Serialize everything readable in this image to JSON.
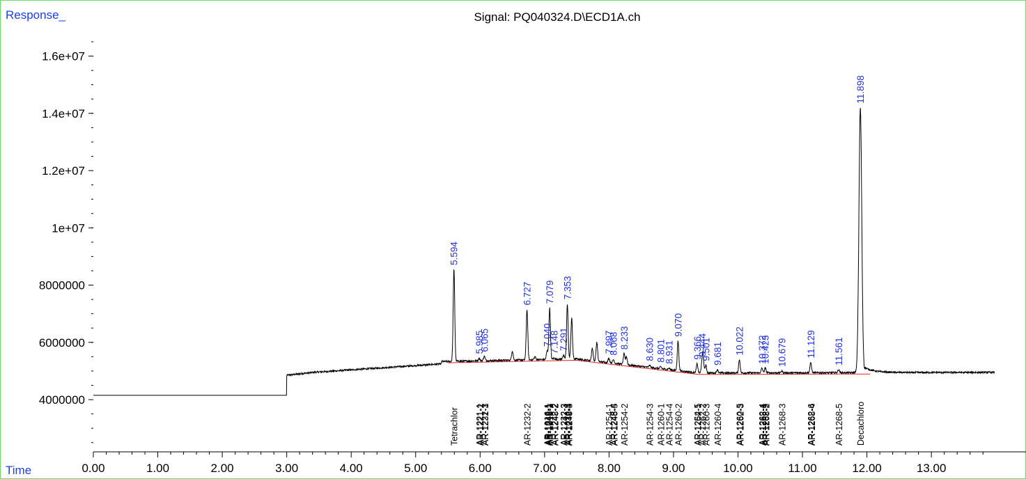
{
  "chart_data": {
    "type": "line",
    "title": "Signal: PQ040324.D\\ECD1A.ch",
    "ylabel": "Response_",
    "xlabel": "Time",
    "xlim": [
      0,
      13.98
    ],
    "ylim": [
      2000000,
      17700000
    ],
    "x_ticks": [
      "0.00",
      "1.00",
      "2.00",
      "3.00",
      "4.00",
      "5.00",
      "6.00",
      "7.00",
      "8.00",
      "9.00",
      "10.00",
      "11.00",
      "12.00",
      "13.00"
    ],
    "y_ticks": [
      "4000000",
      "6000000",
      "8000000",
      "1e+07",
      "1.2e+07",
      "1.4e+07",
      "1.6e+07"
    ],
    "colors": {
      "trace": "#000000",
      "baseline": "#dd2222",
      "peak_label": "#2233dd",
      "frame": "#66dd66",
      "axis_label": "#1a3ff0"
    },
    "peaks": [
      {
        "rt": 5.594,
        "label": "5.594",
        "height": 8550000
      },
      {
        "rt": 5.985,
        "label": "5.985",
        "height": 5450000
      },
      {
        "rt": 6.065,
        "label": "6.065",
        "height": 5520000
      },
      {
        "rt": 6.727,
        "label": "6.727",
        "height": 7150000
      },
      {
        "rt": 7.04,
        "label": "7.040",
        "height": 5700000
      },
      {
        "rt": 7.079,
        "label": "7.079",
        "height": 7200000
      },
      {
        "rt": 7.148,
        "label": "7.148",
        "height": 5450000
      },
      {
        "rt": 7.291,
        "label": "7.291",
        "height": 5550000
      },
      {
        "rt": 7.353,
        "label": "7.353",
        "height": 7350000
      },
      {
        "rt": 7.997,
        "label": "7.997",
        "height": 5450000
      },
      {
        "rt": 8.068,
        "label": "8.068",
        "height": 5400000
      },
      {
        "rt": 8.233,
        "label": "8.233",
        "height": 5600000
      },
      {
        "rt": 8.63,
        "label": "8.630",
        "height": 5200000
      },
      {
        "rt": 8.801,
        "label": "8.801",
        "height": 5150000
      },
      {
        "rt": 8.931,
        "label": "8.931",
        "height": 5100000
      },
      {
        "rt": 9.07,
        "label": "9.070",
        "height": 6050000
      },
      {
        "rt": 9.366,
        "label": "9.366",
        "height": 5250000
      },
      {
        "rt": 9.444,
        "label": "9.444",
        "height": 5350000
      },
      {
        "rt": 9.501,
        "label": "9.501",
        "height": 5200000
      },
      {
        "rt": 9.681,
        "label": "9.681",
        "height": 5050000
      },
      {
        "rt": 10.022,
        "label": "10.022",
        "height": 5400000
      },
      {
        "rt": 10.372,
        "label": "10.372",
        "height": 5100000
      },
      {
        "rt": 10.423,
        "label": "10.423",
        "height": 5100000
      },
      {
        "rt": 10.679,
        "label": "10.679",
        "height": 5000000
      },
      {
        "rt": 11.129,
        "label": "11.129",
        "height": 5300000
      },
      {
        "rt": 11.561,
        "label": "11.561",
        "height": 5050000
      },
      {
        "rt": 11.898,
        "label": "11.898",
        "height": 14200000
      }
    ],
    "minor_peaks": [
      {
        "rt": 6.5,
        "height": 5700000
      },
      {
        "rt": 6.85,
        "height": 5500000
      },
      {
        "rt": 7.42,
        "height": 6850000
      },
      {
        "rt": 7.74,
        "height": 5800000
      },
      {
        "rt": 7.81,
        "height": 6000000
      },
      {
        "rt": 8.27,
        "height": 5500000
      },
      {
        "rt": 9.46,
        "height": 5400000
      }
    ],
    "compounds": [
      {
        "rt": 5.594,
        "name": "Tetrachlor"
      },
      {
        "rt": 5.985,
        "name": "AR-1221-1"
      },
      {
        "rt": 6.0,
        "name": "AR-1221-2"
      },
      {
        "rt": 6.065,
        "name": "AR-1221-3"
      },
      {
        "rt": 6.075,
        "name": "AR-1232-1"
      },
      {
        "rt": 6.727,
        "name": "AR-1232-2"
      },
      {
        "rt": 7.04,
        "name": "AR-1016-1"
      },
      {
        "rt": 7.05,
        "name": "AR-1242-1"
      },
      {
        "rt": 7.06,
        "name": "AR-1248-1"
      },
      {
        "rt": 7.079,
        "name": "AR-1016-2"
      },
      {
        "rt": 7.148,
        "name": "AR-1242-2"
      },
      {
        "rt": 7.158,
        "name": "AR-1248-2"
      },
      {
        "rt": 7.291,
        "name": "AR-1232-3"
      },
      {
        "rt": 7.301,
        "name": "AR-1242-3"
      },
      {
        "rt": 7.353,
        "name": "AR-1016-3"
      },
      {
        "rt": 7.363,
        "name": "AR-1232-4"
      },
      {
        "rt": 7.373,
        "name": "AR-1248-3"
      },
      {
        "rt": 7.997,
        "name": "AR-1254-1"
      },
      {
        "rt": 8.068,
        "name": "AR-1248-4"
      },
      {
        "rt": 8.078,
        "name": "AR-1248-5"
      },
      {
        "rt": 8.233,
        "name": "AR-1254-2"
      },
      {
        "rt": 8.63,
        "name": "AR-1254-3"
      },
      {
        "rt": 8.801,
        "name": "AR-1260-1"
      },
      {
        "rt": 8.931,
        "name": "AR-1254-4"
      },
      {
        "rt": 9.07,
        "name": "AR-1260-2"
      },
      {
        "rt": 9.366,
        "name": "AR-1254-5"
      },
      {
        "rt": 9.376,
        "name": "AR-1262-1"
      },
      {
        "rt": 9.444,
        "name": "AR-1262-2"
      },
      {
        "rt": 9.501,
        "name": "AR-1260-3"
      },
      {
        "rt": 9.681,
        "name": "AR-1260-4"
      },
      {
        "rt": 10.022,
        "name": "AR-1260-5"
      },
      {
        "rt": 10.032,
        "name": "AR-1262-3"
      },
      {
        "rt": 10.372,
        "name": "AR-1262-4"
      },
      {
        "rt": 10.382,
        "name": "AR-1268-1"
      },
      {
        "rt": 10.423,
        "name": "AR-1262-5"
      },
      {
        "rt": 10.433,
        "name": "AR-1268-2"
      },
      {
        "rt": 10.679,
        "name": "AR-1268-3"
      },
      {
        "rt": 11.129,
        "name": "AR-1262-6"
      },
      {
        "rt": 11.139,
        "name": "AR-1268-4"
      },
      {
        "rt": 11.561,
        "name": "AR-1268-5"
      },
      {
        "rt": 11.898,
        "name": "Decachloro"
      }
    ]
  }
}
